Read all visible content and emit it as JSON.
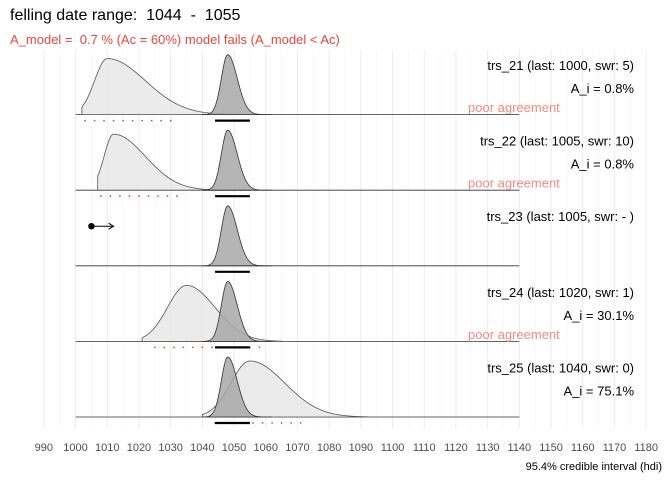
{
  "title": "felling date range:  1044  -  1055",
  "subtitle": "A_model =  0.7 % (Ac = 60%) model fails (A_model < Ac)",
  "chart_data": {
    "type": "density-ridgeline",
    "x_ticks": [
      990,
      1000,
      1010,
      1020,
      1030,
      1040,
      1050,
      1060,
      1070,
      1080,
      1090,
      1100,
      1110,
      1120,
      1130,
      1140,
      1150,
      1160,
      1170,
      1180
    ],
    "x_range": [
      985,
      1185
    ],
    "xlabel": "95.4% credible interval (hdi)",
    "combined": {
      "label": "felling date",
      "mode": 1048,
      "sd_left": 2.0,
      "sd_right": 3.0,
      "hdi": [
        1044,
        1055
      ]
    },
    "series": [
      {
        "name": "trs_21",
        "label": "trs_21 (last: 1000, swr: 5)",
        "a_i": "A_i = 0.8%",
        "agreement": "poor agreement",
        "start": 1002,
        "mode": 1010,
        "sd_left": 4,
        "sd_right": 12,
        "end": 1055,
        "hdi": [
          1002,
          1032
        ]
      },
      {
        "name": "trs_22",
        "label": "trs_22 (last: 1005, swr: 10)",
        "a_i": "A_i = 0.8%",
        "agreement": "poor agreement",
        "start": 1007,
        "mode": 1012,
        "sd_left": 3,
        "sd_right": 10,
        "end": 1055,
        "hdi": [
          1007,
          1033
        ]
      },
      {
        "name": "trs_23",
        "label": "trs_23 (last: 1005, swr: - )",
        "a_i": "",
        "agreement": "",
        "last_ring": 1005,
        "arrow_to": 1012
      },
      {
        "name": "trs_24",
        "label": "trs_24 (last: 1020, swr: 1)",
        "a_i": "A_i = 30.1%",
        "agreement": "poor agreement",
        "start": 1021,
        "mode": 1035,
        "sd_left": 6,
        "sd_right": 9,
        "end": 1065,
        "hdi": [
          1024,
          1058
        ]
      },
      {
        "name": "trs_25",
        "label": "trs_25 (last: 1040, swr: 0)",
        "a_i": "A_i = 75.1%",
        "agreement": "",
        "start": 1040,
        "mode": 1055,
        "sd_left": 6,
        "sd_right": 11,
        "end": 1092,
        "hdi": [
          1043,
          1073
        ]
      }
    ]
  }
}
